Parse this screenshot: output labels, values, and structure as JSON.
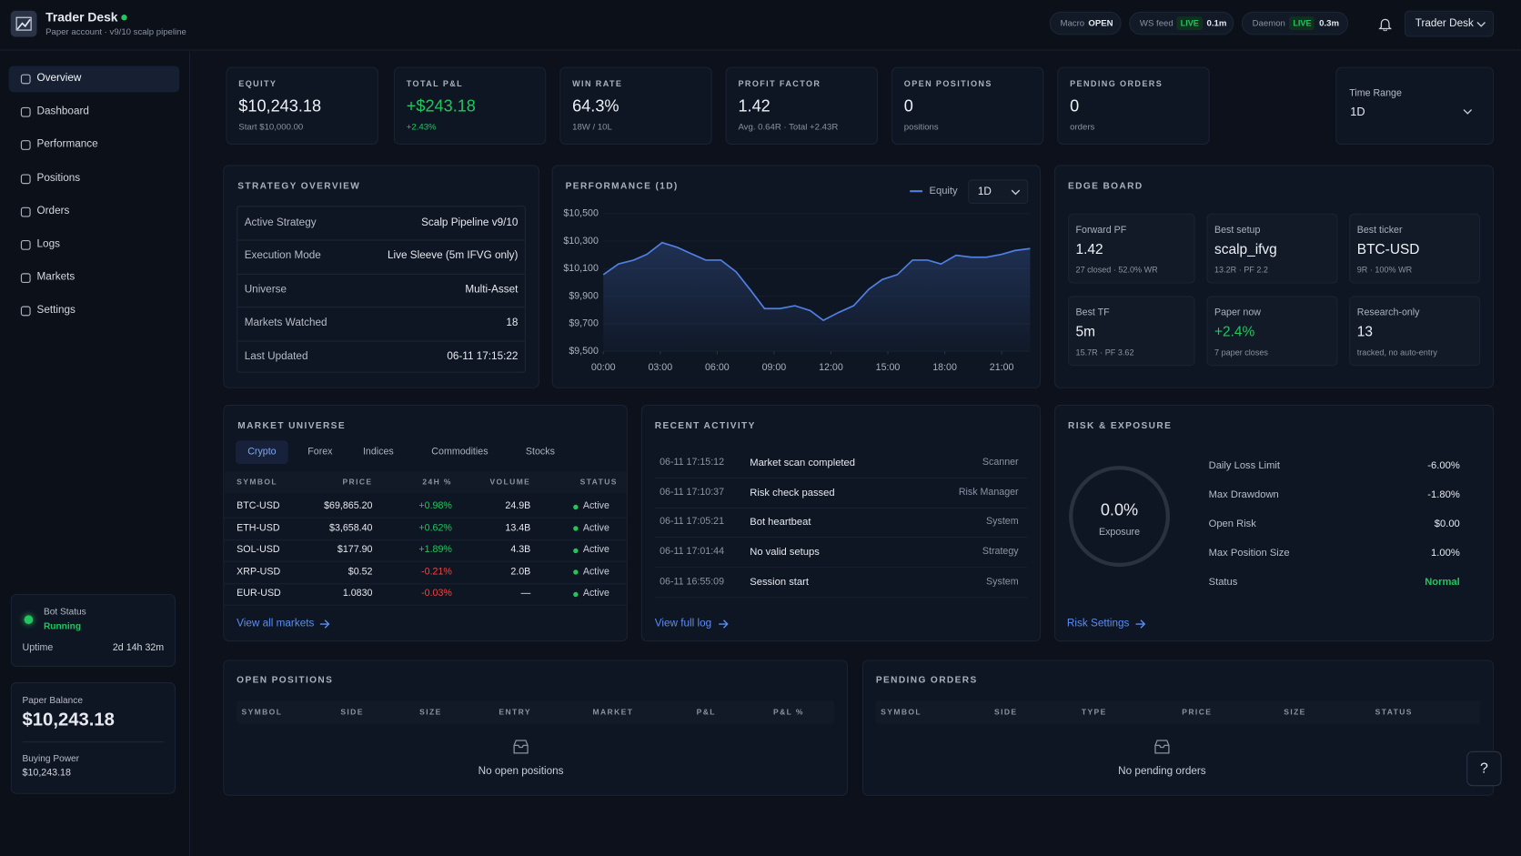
{
  "header": {
    "title": "Trader Desk",
    "subtitle": "Paper account · v9/10 scalp pipeline",
    "pills": [
      {
        "label": "Macro",
        "value": "OPEN"
      },
      {
        "label": "WS feed",
        "state": "LIVE",
        "value": "0.1m"
      },
      {
        "label": "Daemon",
        "state": "LIVE",
        "value": "0.3m"
      }
    ],
    "user": "Trader Desk"
  },
  "sidebar": {
    "nav": [
      "Overview",
      "Dashboard",
      "Performance",
      "Positions",
      "Orders",
      "Logs",
      "Markets",
      "Settings"
    ],
    "bot_status": {
      "label": "Bot Status",
      "state": "Running",
      "uptime_label": "Uptime",
      "uptime": "2d 14h 32m"
    },
    "balance": {
      "label": "Paper Balance",
      "value": "$10,243.18",
      "buying_power_label": "Buying Power",
      "buying_power": "$10,243.18"
    }
  },
  "kpis": [
    {
      "label": "EQUITY",
      "value": "$10,243.18",
      "sub": "Start $10,000.00"
    },
    {
      "label": "TOTAL P&L",
      "value": "+$243.18",
      "sub": "+2.43%"
    },
    {
      "label": "WIN RATE",
      "value": "64.3%",
      "sub": "18W / 10L"
    },
    {
      "label": "PROFIT FACTOR",
      "value": "1.42",
      "sub": "Avg. 0.64R · Total +2.43R"
    },
    {
      "label": "OPEN POSITIONS",
      "value": "0",
      "sub": "positions"
    },
    {
      "label": "PENDING ORDERS",
      "value": "0",
      "sub": "orders"
    }
  ],
  "time_range": {
    "label": "Time Range",
    "value": "1D"
  },
  "strategy_overview": {
    "title": "STRATEGY OVERVIEW",
    "rows": [
      [
        "Active Strategy",
        "Scalp Pipeline v9/10"
      ],
      [
        "Execution Mode",
        "Live Sleeve (5m IFVG only)"
      ],
      [
        "Universe",
        "Multi-Asset"
      ],
      [
        "Markets Watched",
        "18"
      ],
      [
        "Last Updated",
        "06-11 17:15:22"
      ]
    ]
  },
  "chart_data": {
    "type": "line",
    "title": "PERFORMANCE (1D)",
    "range": "1D",
    "grid": true,
    "x": [
      0,
      0.8,
      1.6,
      2.3,
      3.1,
      3.9,
      4.7,
      5.4,
      6.2,
      7.0,
      7.8,
      8.5,
      9.3,
      10.1,
      10.9,
      11.6,
      12.4,
      13.2,
      14.0,
      14.7,
      15.5,
      16.3,
      17.1,
      17.8,
      18.6,
      19.4,
      20.2,
      21.0,
      21.7,
      22.5
    ],
    "series": [
      {
        "name": "Equity",
        "color": "#4f7fe0",
        "values": [
          10056,
          10134,
          10162,
          10204,
          10289,
          10254,
          10204,
          10162,
          10162,
          10077,
          9937,
          9810,
          9810,
          9831,
          9796,
          9725,
          9782,
          9831,
          9951,
          10021,
          10056,
          10162,
          10162,
          10134,
          10197,
          10183,
          10183,
          10204,
          10232,
          10246
        ]
      }
    ],
    "xlim": [
      0,
      22.5
    ],
    "ylim": [
      9500,
      10500
    ],
    "xticks": [
      {
        "value": 0,
        "label": "00:00"
      },
      {
        "value": 3,
        "label": "03:00"
      },
      {
        "value": 6,
        "label": "06:00"
      },
      {
        "value": 9,
        "label": "09:00"
      },
      {
        "value": 12,
        "label": "12:00"
      },
      {
        "value": 15,
        "label": "15:00"
      },
      {
        "value": 18,
        "label": "18:00"
      },
      {
        "value": 21,
        "label": "21:00"
      }
    ],
    "yticks": [
      {
        "value": 10500,
        "label": "$10,500"
      },
      {
        "value": 10300,
        "label": "$10,300"
      },
      {
        "value": 10100,
        "label": "$10,100"
      },
      {
        "value": 9900,
        "label": "$9,900"
      },
      {
        "value": 9700,
        "label": "$9,700"
      },
      {
        "value": 9500,
        "label": "$9,500"
      }
    ]
  },
  "edge_board": {
    "title": "EDGE BOARD",
    "cards": [
      {
        "label": "Forward PF",
        "value": "1.42",
        "sub": "27 closed · 52.0% WR"
      },
      {
        "label": "Best setup",
        "value": "scalp_ifvg",
        "sub": "13.2R · PF 2.2"
      },
      {
        "label": "Best ticker",
        "value": "BTC-USD",
        "sub": "9R · 100% WR"
      },
      {
        "label": "Best TF",
        "value": "5m",
        "sub": "15.7R · PF 3.62"
      },
      {
        "label": "Paper now",
        "value": "+2.4%",
        "sub": "7 paper closes"
      },
      {
        "label": "Research-only",
        "value": "13",
        "sub": "tracked, no auto-entry"
      }
    ]
  },
  "market_universe": {
    "title": "MARKET UNIVERSE",
    "tabs": [
      "Crypto",
      "Forex",
      "Indices",
      "Commodities",
      "Stocks"
    ],
    "columns": [
      "SYMBOL",
      "PRICE",
      "24H %",
      "VOLUME",
      "STATUS"
    ],
    "rows": [
      [
        "BTC-USD",
        "$69,865.20",
        "+0.98%",
        "24.9B",
        "Active"
      ],
      [
        "ETH-USD",
        "$3,658.40",
        "+0.62%",
        "13.4B",
        "Active"
      ],
      [
        "SOL-USD",
        "$177.90",
        "+1.89%",
        "4.3B",
        "Active"
      ],
      [
        "XRP-USD",
        "$0.52",
        "-0.21%",
        "2.0B",
        "Active"
      ],
      [
        "EUR-USD",
        "1.0830",
        "-0.03%",
        "—",
        "Active"
      ]
    ],
    "link": "View all markets"
  },
  "recent_activity": {
    "title": "RECENT ACTIVITY",
    "rows": [
      [
        "06-11 17:15:12",
        "Market scan completed",
        "Scanner"
      ],
      [
        "06-11 17:10:37",
        "Risk check passed",
        "Risk Manager"
      ],
      [
        "06-11 17:05:21",
        "Bot heartbeat",
        "System"
      ],
      [
        "06-11 17:01:44",
        "No valid setups",
        "Strategy"
      ],
      [
        "06-11 16:55:09",
        "Session start",
        "System"
      ]
    ],
    "link": "View full log"
  },
  "risk": {
    "title": "RISK & EXPOSURE",
    "gauge_value": "0.0%",
    "gauge_label": "Exposure",
    "rows": [
      [
        "Daily Loss Limit",
        "-6.00%"
      ],
      [
        "Max Drawdown",
        "-1.80%"
      ],
      [
        "Open Risk",
        "$0.00"
      ],
      [
        "Max Position Size",
        "1.00%"
      ],
      [
        "Status",
        "Normal"
      ]
    ],
    "link": "Risk Settings"
  },
  "open_positions": {
    "title": "OPEN POSITIONS",
    "columns": [
      "SYMBOL",
      "SIDE",
      "SIZE",
      "ENTRY",
      "MARKET",
      "P&L",
      "P&L %"
    ],
    "empty": "No open positions"
  },
  "pending_orders": {
    "title": "PENDING ORDERS",
    "columns": [
      "SYMBOL",
      "SIDE",
      "TYPE",
      "PRICE",
      "SIZE",
      "STATUS"
    ],
    "empty": "No pending orders"
  },
  "help": "?"
}
